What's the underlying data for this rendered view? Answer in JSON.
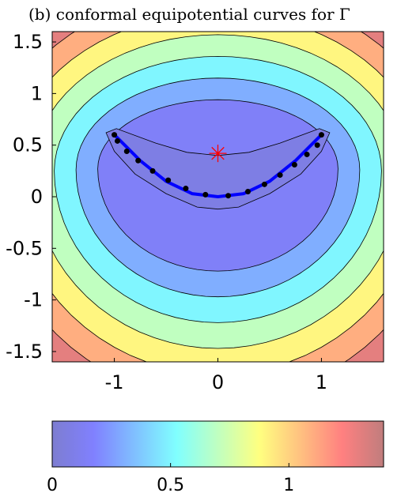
{
  "chart_data": [
    {
      "type": "contour",
      "title": "(b) conformal equipotential curves for Γ",
      "xlabel": "",
      "ylabel": "",
      "xlim": [
        -1.6,
        1.6
      ],
      "ylim": [
        -1.6,
        1.6
      ],
      "x_ticks": [
        -1,
        0,
        1
      ],
      "x_tick_labels": [
        "-1",
        "0",
        "1"
      ],
      "y_ticks": [
        -1.5,
        -1,
        -0.5,
        0,
        0.5,
        1,
        1.5
      ],
      "y_tick_labels": [
        "-1.5",
        "-1",
        "-0.5",
        "0",
        "0.5",
        "1",
        "1.5"
      ],
      "colormap": "jet (translucent)",
      "contour_levels": [
        0.1,
        0.2,
        0.4,
        0.6,
        0.8,
        1.0,
        1.2,
        1.4
      ],
      "curve": {
        "color": "#0000ff",
        "x": [
          -1.0,
          -0.75,
          -0.5,
          -0.25,
          0.0,
          0.25,
          0.5,
          0.75,
          1.0
        ],
        "y": [
          0.6,
          0.35,
          0.15,
          0.03,
          0.0,
          0.03,
          0.15,
          0.35,
          0.6
        ]
      },
      "points": {
        "color": "#000000",
        "x": [
          -1.0,
          -0.97,
          -0.88,
          -0.77,
          -0.63,
          -0.48,
          -0.31,
          -0.12,
          0.1,
          0.29,
          0.45,
          0.6,
          0.74,
          0.86,
          0.96,
          1.0
        ],
        "y": [
          0.6,
          0.54,
          0.44,
          0.35,
          0.25,
          0.16,
          0.08,
          0.02,
          0.01,
          0.05,
          0.12,
          0.21,
          0.31,
          0.41,
          0.5,
          0.6
        ]
      },
      "marker": {
        "x": 0.0,
        "y": 0.42,
        "symbol": "asterisk",
        "color": "#ff0000"
      }
    },
    {
      "type": "colorbar",
      "range": [
        0,
        1.4
      ],
      "ticks": [
        0,
        0.5,
        1
      ],
      "tick_labels": [
        "0",
        "0.5",
        "1"
      ],
      "colors": [
        "#7d7dd0",
        "#8080ff",
        "#80c0ff",
        "#80ffff",
        "#c0ffc0",
        "#ffff80",
        "#ffc080",
        "#ff8080",
        "#c07d7d"
      ]
    }
  ]
}
